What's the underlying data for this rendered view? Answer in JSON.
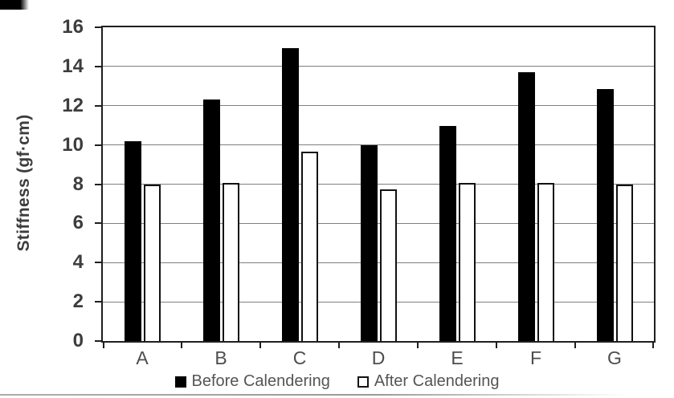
{
  "chart_data": {
    "type": "bar",
    "title": "",
    "xlabel": "",
    "ylabel": "Stiffness (gf·cm)",
    "ylim": [
      0,
      16
    ],
    "yticks": [
      0,
      2,
      4,
      6,
      8,
      10,
      12,
      14,
      16
    ],
    "grid": "horizontal",
    "legend_position": "bottom",
    "categories": [
      "A",
      "B",
      "C",
      "D",
      "E",
      "F",
      "G"
    ],
    "series": [
      {
        "name": "Before Calendering",
        "fill": "#000000",
        "values": [
          10.2,
          12.3,
          14.95,
          10.0,
          10.95,
          13.7,
          12.85
        ]
      },
      {
        "name": "After Calendering",
        "fill": "#ffffff",
        "values": [
          8.0,
          8.05,
          9.65,
          7.75,
          8.05,
          8.05,
          8.0
        ]
      }
    ],
    "colors": {
      "frame": "#1f1f1f",
      "gridline": "#7f7f7f",
      "tick_text": "#3d3d3d",
      "label_text": "#555555"
    }
  }
}
